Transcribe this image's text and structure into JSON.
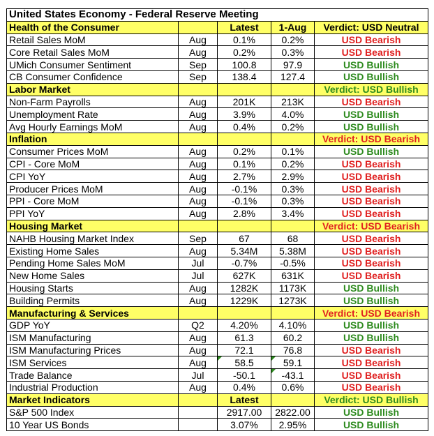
{
  "title": "United States Economy - Federal Reserve Meeting",
  "headers": {
    "latest": "Latest",
    "previous": "1-Aug"
  },
  "sections": [
    {
      "name": "Health of the Consumer",
      "show_headers": true,
      "verdict": {
        "text": "Verdict: USD Neutral",
        "kind": "neutral"
      },
      "rows": [
        {
          "label": "Retail Sales MoM",
          "period": "Aug",
          "latest": "0.1%",
          "previous": "0.2%",
          "verdict": "USD Bearish",
          "kind": "bearish"
        },
        {
          "label": "Core Retail Sales MoM",
          "period": "Aug",
          "latest": "0.2%",
          "previous": "0.3%",
          "verdict": "USD Bearish",
          "kind": "bearish"
        },
        {
          "label": "UMich Consumer Sentiment",
          "period": "Sep",
          "latest": "100.8",
          "previous": "97.9",
          "verdict": "USD Bullish",
          "kind": "bullish"
        },
        {
          "label": "CB Consumer Confidence",
          "period": "Sep",
          "latest": "138.4",
          "previous": "127.4",
          "verdict": "USD Bullish",
          "kind": "bullish"
        }
      ]
    },
    {
      "name": "Labor Market",
      "show_headers": false,
      "verdict": {
        "text": "Verdict: USD Bullish",
        "kind": "bullish"
      },
      "rows": [
        {
          "label": "Non-Farm Payrolls",
          "period": "Aug",
          "latest": "201K",
          "previous": "213K",
          "verdict": "USD Bearish",
          "kind": "bearish"
        },
        {
          "label": "Unemployment Rate",
          "period": "Aug",
          "latest": "3.9%",
          "previous": "4.0%",
          "verdict": "USD Bullish",
          "kind": "bullish"
        },
        {
          "label": "Avg Hourly Earnings MoM",
          "period": "Aug",
          "latest": "0.4%",
          "previous": "0.2%",
          "verdict": "USD Bullish",
          "kind": "bullish"
        }
      ]
    },
    {
      "name": "Inflation",
      "show_headers": false,
      "verdict": {
        "text": "Verdict: USD Bearish",
        "kind": "bearish"
      },
      "rows": [
        {
          "label": "Consumer Prices MoM",
          "period": "Aug",
          "latest": "0.2%",
          "previous": "0.1%",
          "verdict": "USD Bullish",
          "kind": "bullish"
        },
        {
          "label": "CPI - Core MoM",
          "period": "Aug",
          "latest": "0.1%",
          "previous": "0.2%",
          "verdict": "USD Bearish",
          "kind": "bearish"
        },
        {
          "label": "CPI YoY",
          "period": "Aug",
          "latest": "2.7%",
          "previous": "2.9%",
          "verdict": "USD Bearish",
          "kind": "bearish"
        },
        {
          "label": "Producer Prices MoM",
          "period": "Aug",
          "latest": "-0.1%",
          "previous": "0.3%",
          "verdict": "USD Bearish",
          "kind": "bearish"
        },
        {
          "label": "PPI - Core MoM",
          "period": "Aug",
          "latest": "-0.1%",
          "previous": "0.3%",
          "verdict": "USD Bearish",
          "kind": "bearish"
        },
        {
          "label": "PPI YoY",
          "period": "Aug",
          "latest": "2.8%",
          "previous": "3.4%",
          "verdict": "USD Bearish",
          "kind": "bearish"
        }
      ]
    },
    {
      "name": "Housing Market",
      "show_headers": false,
      "verdict": {
        "text": "Verdict: USD Bearish",
        "kind": "bearish"
      },
      "rows": [
        {
          "label": "NAHB Housing Market Index",
          "period": "Sep",
          "latest": "67",
          "previous": "68",
          "verdict": "USD Bearish",
          "kind": "bearish"
        },
        {
          "label": "Existing Home Sales",
          "period": "Aug",
          "latest": "5.34M",
          "previous": "5.38M",
          "verdict": "USD Bearish",
          "kind": "bearish"
        },
        {
          "label": "Pending Home Sales MoM",
          "period": "Jul",
          "latest": "-0.7%",
          "previous": "-0.5%",
          "verdict": "USD Bearish",
          "kind": "bearish"
        },
        {
          "label": "New Home Sales",
          "period": "Jul",
          "latest": "627K",
          "previous": "631K",
          "verdict": "USD Bearish",
          "kind": "bearish"
        },
        {
          "label": "Housing Starts",
          "period": "Aug",
          "latest": "1282K",
          "previous": "1173K",
          "verdict": "USD Bullish",
          "kind": "bullish"
        },
        {
          "label": "Building Permits",
          "period": "Aug",
          "latest": "1229K",
          "previous": "1273K",
          "verdict": "USD Bullish",
          "kind": "bullish"
        }
      ]
    },
    {
      "name": "Manufacturing & Services",
      "show_headers": false,
      "verdict": {
        "text": "Verdict: USD Bearish",
        "kind": "bearish"
      },
      "rows": [
        {
          "label": "GDP YoY",
          "period": "Q2",
          "latest": "4.20%",
          "previous": "4.10%",
          "verdict": "USD Bullish",
          "kind": "bullish"
        },
        {
          "label": "ISM Manufacturing",
          "period": "Aug",
          "latest": "61.3",
          "previous": "60.2",
          "verdict": "USD Bullish",
          "kind": "bullish"
        },
        {
          "label": "ISM Manufacturing Prices",
          "period": "Aug",
          "latest": "72.1",
          "previous": "76.8",
          "verdict": "USD Bearish",
          "kind": "bearish"
        },
        {
          "label": "ISM Services",
          "period": "Aug",
          "latest": "58.5",
          "previous": "59.1",
          "verdict": "USD Bearish",
          "kind": "bearish",
          "flag_latest": true,
          "flag_previous": true
        },
        {
          "label": "Trade Balance",
          "period": "Jul",
          "latest": "-50.1",
          "previous": "-43.1",
          "verdict": "USD Bearish",
          "kind": "bearish",
          "flag_previous": true
        },
        {
          "label": "Industrial Production",
          "period": "Aug",
          "latest": "0.4%",
          "previous": "0.6%",
          "verdict": "USD Bearish",
          "kind": "bearish"
        }
      ]
    },
    {
      "name": "Market Indicators",
      "show_headers": false,
      "show_latest_only": true,
      "verdict": {
        "text": "Verdict: USD Bullish",
        "kind": "bullish"
      },
      "rows": [
        {
          "label": "S&P 500 Index",
          "period": "",
          "latest": "2917.00",
          "previous": "2822.00",
          "verdict": "USD Bullish",
          "kind": "bullish"
        },
        {
          "label": "10 Year US Bonds",
          "period": "",
          "latest": "3.07%",
          "previous": "2.95%",
          "verdict": "USD Bullish",
          "kind": "bullish"
        }
      ]
    }
  ]
}
